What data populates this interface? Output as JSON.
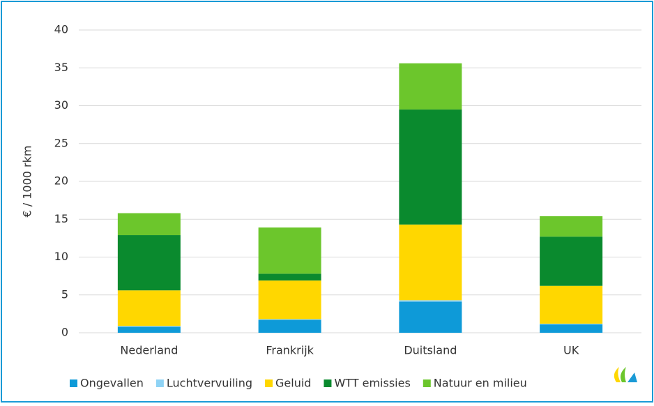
{
  "chart_data": {
    "type": "stacked_bar",
    "y_label": "€ / 1000 rkm",
    "categories": [
      "Nederland",
      "Frankrijk",
      "Duitsland",
      "UK"
    ],
    "series": [
      {
        "name": "Ongevallen",
        "color": "#0e9ad8",
        "values": [
          0.8,
          1.7,
          4.1,
          1.1
        ]
      },
      {
        "name": "Luchtvervuiling",
        "color": "#8fd3f5",
        "values": [
          0.1,
          0.1,
          0.2,
          0.1
        ]
      },
      {
        "name": "Geluid",
        "color": "#ffd700",
        "values": [
          4.7,
          5.1,
          10.0,
          5.0
        ]
      },
      {
        "name": "WTT emissies",
        "color": "#0a8a2e",
        "values": [
          7.3,
          0.9,
          15.2,
          6.5
        ]
      },
      {
        "name": "Natuur en milieu",
        "color": "#6cc62c",
        "values": [
          2.9,
          6.1,
          6.1,
          2.7
        ]
      }
    ],
    "ylim": [
      0,
      40
    ],
    "yticks": [
      0,
      5,
      10,
      15,
      20,
      25,
      30,
      35,
      40
    ],
    "grid": true,
    "legend": "bottom"
  }
}
